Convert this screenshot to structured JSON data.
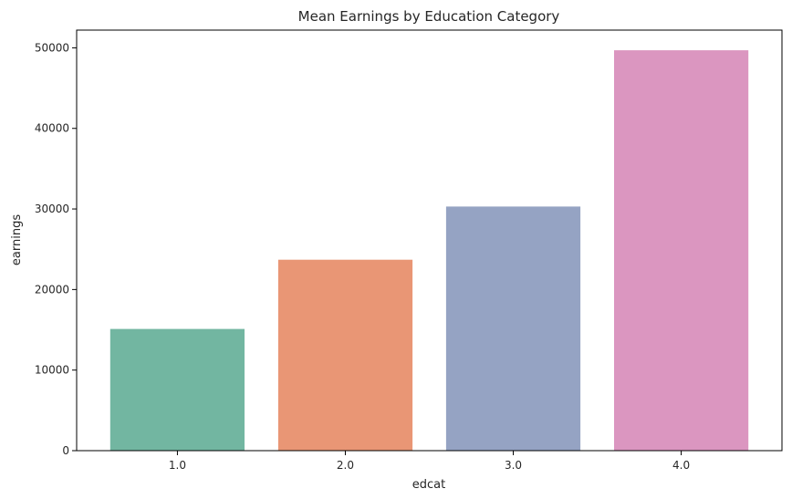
{
  "chart_data": {
    "type": "bar",
    "title": "Mean Earnings by Education Category",
    "xlabel": "edcat",
    "ylabel": "earnings",
    "categories": [
      "1.0",
      "2.0",
      "3.0",
      "4.0"
    ],
    "values": [
      15100,
      23700,
      30300,
      49700
    ],
    "colors": [
      "#72b6a1",
      "#e99675",
      "#95a3c3",
      "#db96c0"
    ],
    "ylim": [
      0,
      52200
    ],
    "yticks": [
      0,
      10000,
      20000,
      30000,
      40000,
      50000
    ],
    "grid": false,
    "legend": "none"
  }
}
